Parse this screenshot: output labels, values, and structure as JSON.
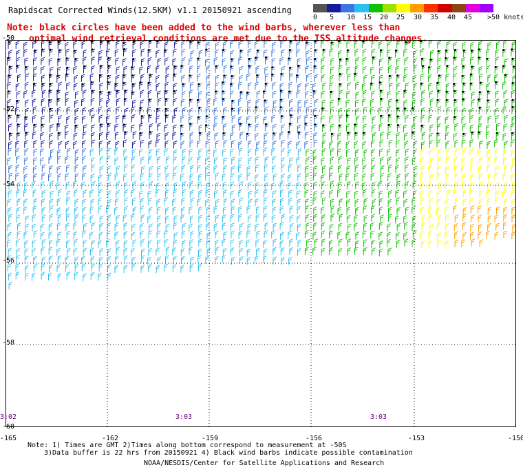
{
  "title": "Rapidscat Corrected Winds(12.5KM) v1.1 20150921 ascending",
  "notes": {
    "line1": "Note: black circles have been added to the wind barbs, wherever less than",
    "line2": "optimal wind retrieval conditions are met due to the ISS altitude changes."
  },
  "legend": {
    "colors": [
      "#555555",
      "#1a1aa0",
      "#3a78e0",
      "#30c0f0",
      "#10c000",
      "#a0e000",
      "#ffff00",
      "#ffa000",
      "#ff3000",
      "#d00000",
      "#8b4513",
      "#e000e0",
      "#a000ff"
    ],
    "labels": [
      "0",
      "5",
      "10",
      "15",
      "20",
      "25",
      "30",
      "35",
      "40",
      "45",
      ">50 knots"
    ],
    "units": "knots"
  },
  "axes": {
    "longitudes": [
      "-165",
      "-162",
      "-159",
      "-156",
      "-153",
      "-150"
    ],
    "latitudes": [
      "-50",
      "-52",
      "-54",
      "-56",
      "-58",
      "-60"
    ],
    "times": [
      "3:02",
      "3:03",
      "3:03"
    ]
  },
  "footer": {
    "line1": "Note: 1) Times are GMT 2)Times along bottom correspond to measurement at -50S",
    "line2": "3)Data buffer is 22 hrs from 20150921 4) Black wind barbs indicate possible contamination",
    "line3": "NOAA/NESDIS/Center for Satellite Applications and Research"
  }
}
